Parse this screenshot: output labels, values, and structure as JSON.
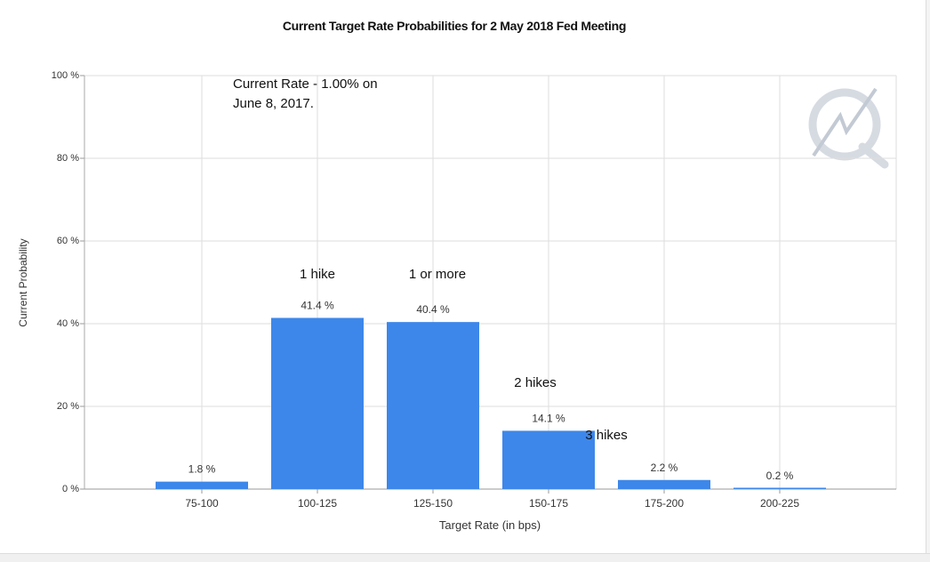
{
  "chart_data": {
    "type": "bar",
    "title": "Current Target Rate Probabilities for 2 May 2018 Fed Meeting",
    "xlabel": "Target Rate (in bps)",
    "ylabel": "Current Probability",
    "categories": [
      "75-100",
      "100-125",
      "125-150",
      "150-175",
      "175-200",
      "200-225"
    ],
    "values": [
      1.8,
      41.4,
      40.4,
      14.1,
      2.2,
      0.2
    ],
    "data_labels": [
      "1.8 %",
      "41.4 %",
      "40.4 %",
      "14.1 %",
      "2.2 %",
      "0.2 %"
    ],
    "yticks": [
      "0 %",
      "20 %",
      "40 %",
      "60 %",
      "80 %",
      "100 %"
    ],
    "ylim": [
      0,
      100
    ],
    "grid": true,
    "bar_color": "#3d87ea",
    "annotations": {
      "current_rate": [
        "Current Rate - 1.00% on",
        "June 8, 2017."
      ],
      "bar_notes": [
        {
          "category": "100-125",
          "text": "1 hike"
        },
        {
          "category": "125-150",
          "text": "1 or more"
        },
        {
          "category": "150-175",
          "text": "2 hikes"
        },
        {
          "category": "175-200",
          "text": "3 hikes"
        }
      ]
    },
    "watermark_icon": "q-lightning-logo-icon"
  }
}
